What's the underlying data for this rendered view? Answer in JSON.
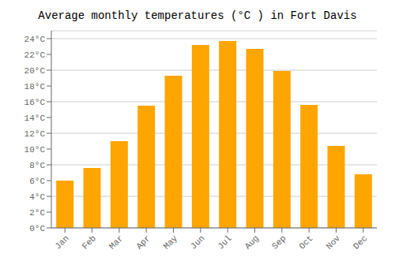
{
  "chart_data": {
    "type": "bar",
    "title": "Average monthly temperatures (°C ) in Fort Davis",
    "categories": [
      "Jan",
      "Feb",
      "Mar",
      "Apr",
      "May",
      "Jun",
      "Jul",
      "Aug",
      "Sep",
      "Oct",
      "Nov",
      "Dec"
    ],
    "values": [
      6.0,
      7.6,
      11.0,
      15.5,
      19.3,
      23.2,
      23.7,
      22.7,
      19.9,
      15.6,
      10.4,
      6.8
    ],
    "color": "#FFA500",
    "ylim": [
      0,
      25
    ],
    "yticks": [
      {
        "value": 0,
        "label": "0°C"
      },
      {
        "value": 2,
        "label": "2°C"
      },
      {
        "value": 4,
        "label": "4°C"
      },
      {
        "value": 6,
        "label": "6°C"
      },
      {
        "value": 8,
        "label": "8°C"
      },
      {
        "value": 10,
        "label": "10°C"
      },
      {
        "value": 12,
        "label": "12°C"
      },
      {
        "value": 14,
        "label": "14°C"
      },
      {
        "value": 16,
        "label": "16°C"
      },
      {
        "value": 18,
        "label": "18°C"
      },
      {
        "value": 20,
        "label": "20°C"
      },
      {
        "value": 22,
        "label": "22°C"
      },
      {
        "value": 24,
        "label": "24°C"
      }
    ],
    "grid": true
  }
}
